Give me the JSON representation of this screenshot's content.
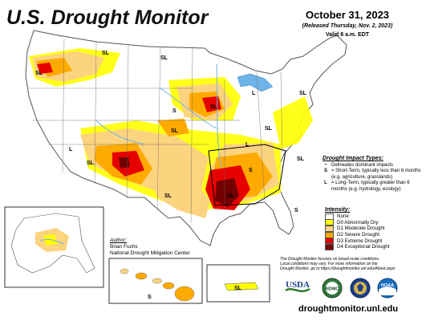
{
  "header": {
    "title": "U.S. Drought Monitor",
    "date": "October 31, 2023",
    "released": "(Released Thursday, Nov. 2, 2023)",
    "valid": "Valid 8 a.m. EDT"
  },
  "impact_types": {
    "heading": "Drought Impact Types:",
    "items": [
      {
        "symbol": "~",
        "text": "Delineates dominant impacts"
      },
      {
        "symbol": "S",
        "text": "= Short-Term, typically less than 6 months (e.g. agriculture, grasslands)"
      },
      {
        "symbol": "L",
        "text": "= Long-Term, typically greater than 6 months (e.g. hydrology, ecology)"
      }
    ]
  },
  "intensity": {
    "heading": "Intensity:",
    "items": [
      {
        "label": "None",
        "color": "#ffffff"
      },
      {
        "label": "D0 Abnormally Dry",
        "color": "#ffff00"
      },
      {
        "label": "D1 Moderate Drought",
        "color": "#fcd37f"
      },
      {
        "label": "D2 Severe Drought",
        "color": "#ffaa00"
      },
      {
        "label": "D3 Extreme Drought",
        "color": "#e60000"
      },
      {
        "label": "D4 Exceptional Drought",
        "color": "#730000"
      }
    ]
  },
  "author": {
    "heading": "Author:",
    "name": "Brian Fuchs",
    "org": "National Drought Mitigation Center"
  },
  "note": {
    "line1": "The Drought Monitor focuses on broad-scale conditions.",
    "line2": "Local conditions may vary. For more information on the",
    "line3": "Drought Monitor, go to https://droughtmonitor.unl.edu/About.aspx"
  },
  "logos": {
    "usda": "USDA",
    "ndmc": "NDMC",
    "noaa": "NOAA"
  },
  "url": "droughtmonitor.unl.edu",
  "map_labels": {
    "sl": "SL",
    "s": "S",
    "l": "L"
  },
  "colors": {
    "d0": "#ffff00",
    "d1": "#fcd37f",
    "d2": "#ffaa00",
    "d3": "#e60000",
    "d4": "#730000",
    "water": "#6fb4e8"
  }
}
